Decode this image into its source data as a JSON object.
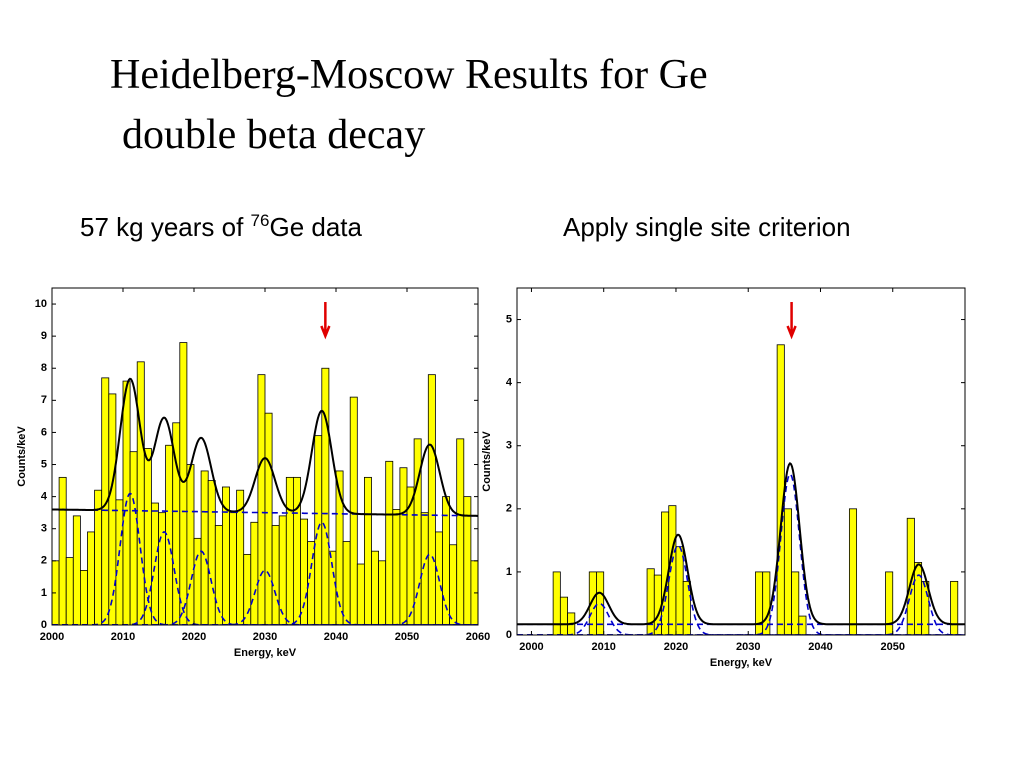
{
  "title_lines": [
    "Heidelberg-Moscow Results for Ge",
    "double beta decay"
  ],
  "chart_data": [
    {
      "type": "histogram",
      "subtitle": [
        "57 kg years of ",
        "76",
        "Ge data"
      ],
      "xlabel": "Energy, keV",
      "ylabel": "Counts/keV",
      "bins": [
        2000,
        2001,
        2002,
        2003,
        2004,
        2005,
        2006,
        2007,
        2008,
        2009,
        2010,
        2011,
        2012,
        2013,
        2014,
        2015,
        2016,
        2017,
        2018,
        2019,
        2020,
        2021,
        2022,
        2023,
        2024,
        2025,
        2026,
        2027,
        2028,
        2029,
        2030,
        2031,
        2032,
        2033,
        2034,
        2035,
        2036,
        2037,
        2038,
        2039,
        2040,
        2041,
        2042,
        2043,
        2044,
        2045,
        2046,
        2047,
        2048,
        2049,
        2050,
        2051,
        2052,
        2053,
        2054,
        2055,
        2056,
        2057,
        2058,
        2059,
        2060
      ],
      "values": [
        2.0,
        4.6,
        2.1,
        3.4,
        1.7,
        2.9,
        4.2,
        7.7,
        7.2,
        3.9,
        7.6,
        5.4,
        8.2,
        5.5,
        3.8,
        3.5,
        5.6,
        6.3,
        8.8,
        5.0,
        2.7,
        4.8,
        4.5,
        3.1,
        4.3,
        3.5,
        4.2,
        2.2,
        3.2,
        7.8,
        6.6,
        3.1,
        3.4,
        4.6,
        4.6,
        3.3,
        2.6,
        5.9,
        8.0,
        2.3,
        4.8,
        2.6,
        7.1,
        1.9,
        4.6,
        2.3,
        2.0,
        5.1,
        3.6,
        4.9,
        4.3,
        5.8,
        3.5,
        7.8,
        2.9,
        4.0,
        2.5,
        5.8,
        4.0,
        2.0
      ],
      "color": "#ffff00",
      "xlim": [
        2000,
        2060
      ],
      "ylim": [
        0,
        10.5
      ],
      "xticks": [
        2000,
        2010,
        2020,
        2030,
        2040,
        2050,
        2060
      ],
      "yticks": [
        0,
        1,
        2,
        3,
        4,
        5,
        6,
        7,
        8,
        9,
        10
      ],
      "fit": {
        "background": [
          3.6,
          3.4
        ],
        "sigma": 1.4,
        "color": "#000000",
        "component_color": "#0000cc",
        "peaks": [
          {
            "center": 2011,
            "height": 4.1
          },
          {
            "center": 2015.8,
            "height": 2.9
          },
          {
            "center": 2021,
            "height": 2.3
          },
          {
            "center": 2030,
            "height": 1.7
          },
          {
            "center": 2038,
            "height": 3.2
          },
          {
            "center": 2053.2,
            "height": 2.2
          }
        ]
      },
      "marker_x": 2038.5,
      "marker_color": "#e00000"
    },
    {
      "type": "histogram",
      "subtitle": [
        "Apply single site criterion"
      ],
      "xlabel": "Energy, keV",
      "ylabel": "Counts/keV",
      "bins": [
        2000,
        2001,
        2002,
        2003,
        2004,
        2005,
        2006,
        2007,
        2008,
        2009,
        2010,
        2011,
        2012,
        2013,
        2014,
        2015,
        2016,
        2017,
        2018,
        2019,
        2020,
        2021,
        2022,
        2023,
        2024,
        2025,
        2026,
        2027,
        2028,
        2029,
        2030,
        2031,
        2032,
        2033,
        2034,
        2035,
        2036,
        2037,
        2038,
        2039,
        2040,
        2041,
        2042,
        2043,
        2044,
        2045,
        2046,
        2047,
        2048,
        2049,
        2050,
        2051,
        2052,
        2053,
        2054,
        2055,
        2056,
        2057,
        2058,
        2059,
        2060
      ],
      "values": [
        0,
        0,
        0,
        1.0,
        0.6,
        0.35,
        0,
        0,
        1.0,
        1.0,
        0,
        0,
        0,
        0,
        0,
        0,
        1.05,
        0.95,
        1.95,
        2.05,
        1.4,
        0.85,
        0,
        0,
        0,
        0,
        0,
        0,
        0,
        0,
        0,
        1.0,
        1.0,
        0,
        4.6,
        2.0,
        1.0,
        0.3,
        0,
        0,
        0,
        0,
        0,
        0,
        2.0,
        0,
        0,
        0,
        0,
        1.0,
        0,
        0,
        1.85,
        1.15,
        0.85,
        0,
        0,
        0,
        0.85,
        0
      ],
      "color": "#ffff00",
      "xlim": [
        1998,
        2060
      ],
      "ylim": [
        0,
        5.5
      ],
      "xticks": [
        2000,
        2010,
        2020,
        2030,
        2040,
        2050
      ],
      "yticks": [
        0,
        1,
        2,
        3,
        4,
        5
      ],
      "fit": {
        "background": [
          0.17,
          0.17
        ],
        "sigma": 1.3,
        "color": "#000000",
        "component_color": "#0000cc",
        "peaks": [
          {
            "center": 2009.4,
            "height": 0.5
          },
          {
            "center": 2020.3,
            "height": 1.42
          },
          {
            "center": 2035.8,
            "height": 2.55
          },
          {
            "center": 2053.6,
            "height": 0.95
          }
        ]
      },
      "marker_x": 2036,
      "marker_color": "#e00000"
    }
  ]
}
